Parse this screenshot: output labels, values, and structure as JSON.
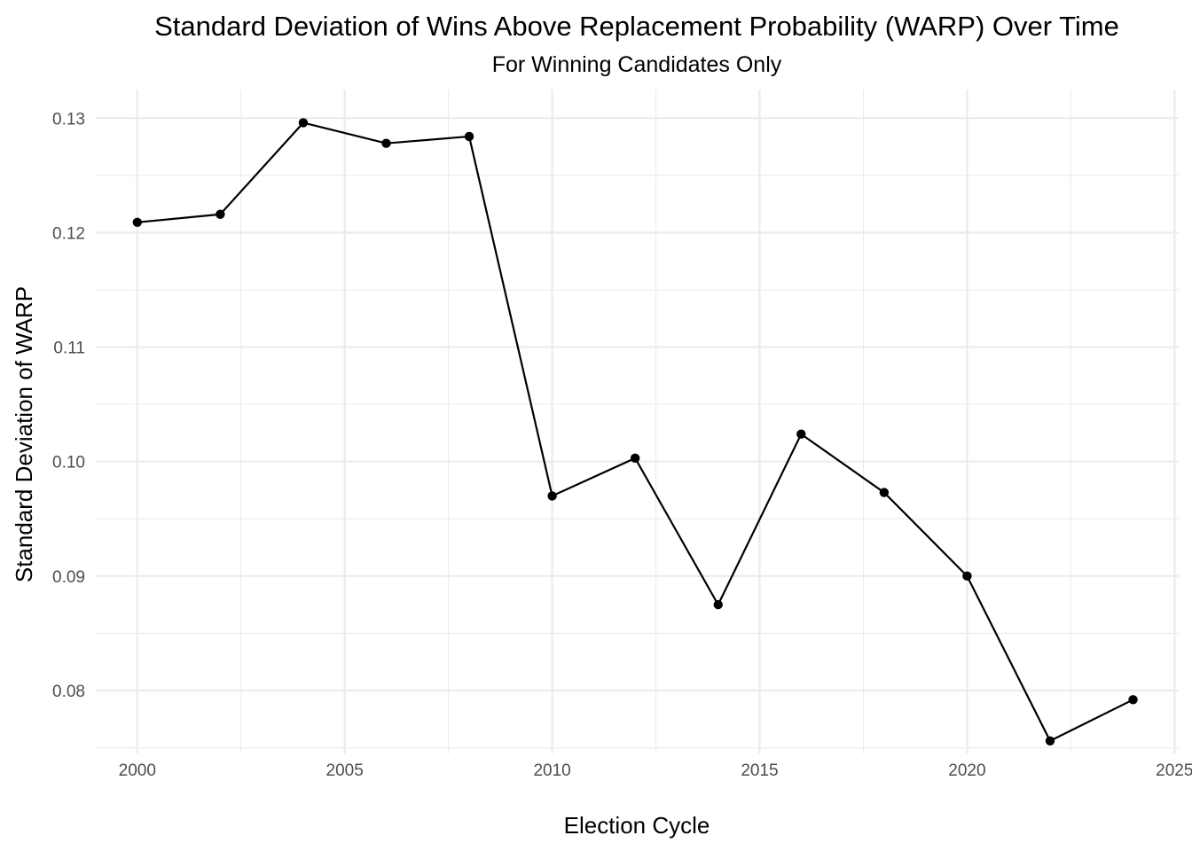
{
  "chart_data": {
    "type": "line",
    "title": "Standard Deviation of Wins Above Replacement Probability (WARP) Over Time",
    "subtitle": "For Winning Candidates Only",
    "xlabel": "Election Cycle",
    "ylabel": "Standard Deviation of WARP",
    "xlim": [
      1999.0,
      2025.1
    ],
    "ylim": [
      0.0745,
      0.1325
    ],
    "x_ticks": [
      2000,
      2005,
      2010,
      2015,
      2020,
      2025
    ],
    "y_ticks": [
      0.08,
      0.09,
      0.1,
      0.11,
      0.12,
      0.13
    ],
    "x_tick_labels": [
      "2000",
      "2005",
      "2010",
      "2015",
      "2020",
      "2025"
    ],
    "y_tick_labels": [
      "0.08",
      "0.09",
      "0.10",
      "0.11",
      "0.12",
      "0.13"
    ],
    "grid": true,
    "legend": "none",
    "series": [
      {
        "color": "#000000",
        "x": [
          2000,
          2002,
          2004,
          2006,
          2008,
          2010,
          2012,
          2014,
          2016,
          2018,
          2020,
          2022,
          2024
        ],
        "y": [
          0.1209,
          0.1216,
          0.1296,
          0.1278,
          0.1284,
          0.097,
          0.1003,
          0.0875,
          0.1024,
          0.0973,
          0.09,
          0.0756,
          0.0792
        ]
      }
    ]
  }
}
